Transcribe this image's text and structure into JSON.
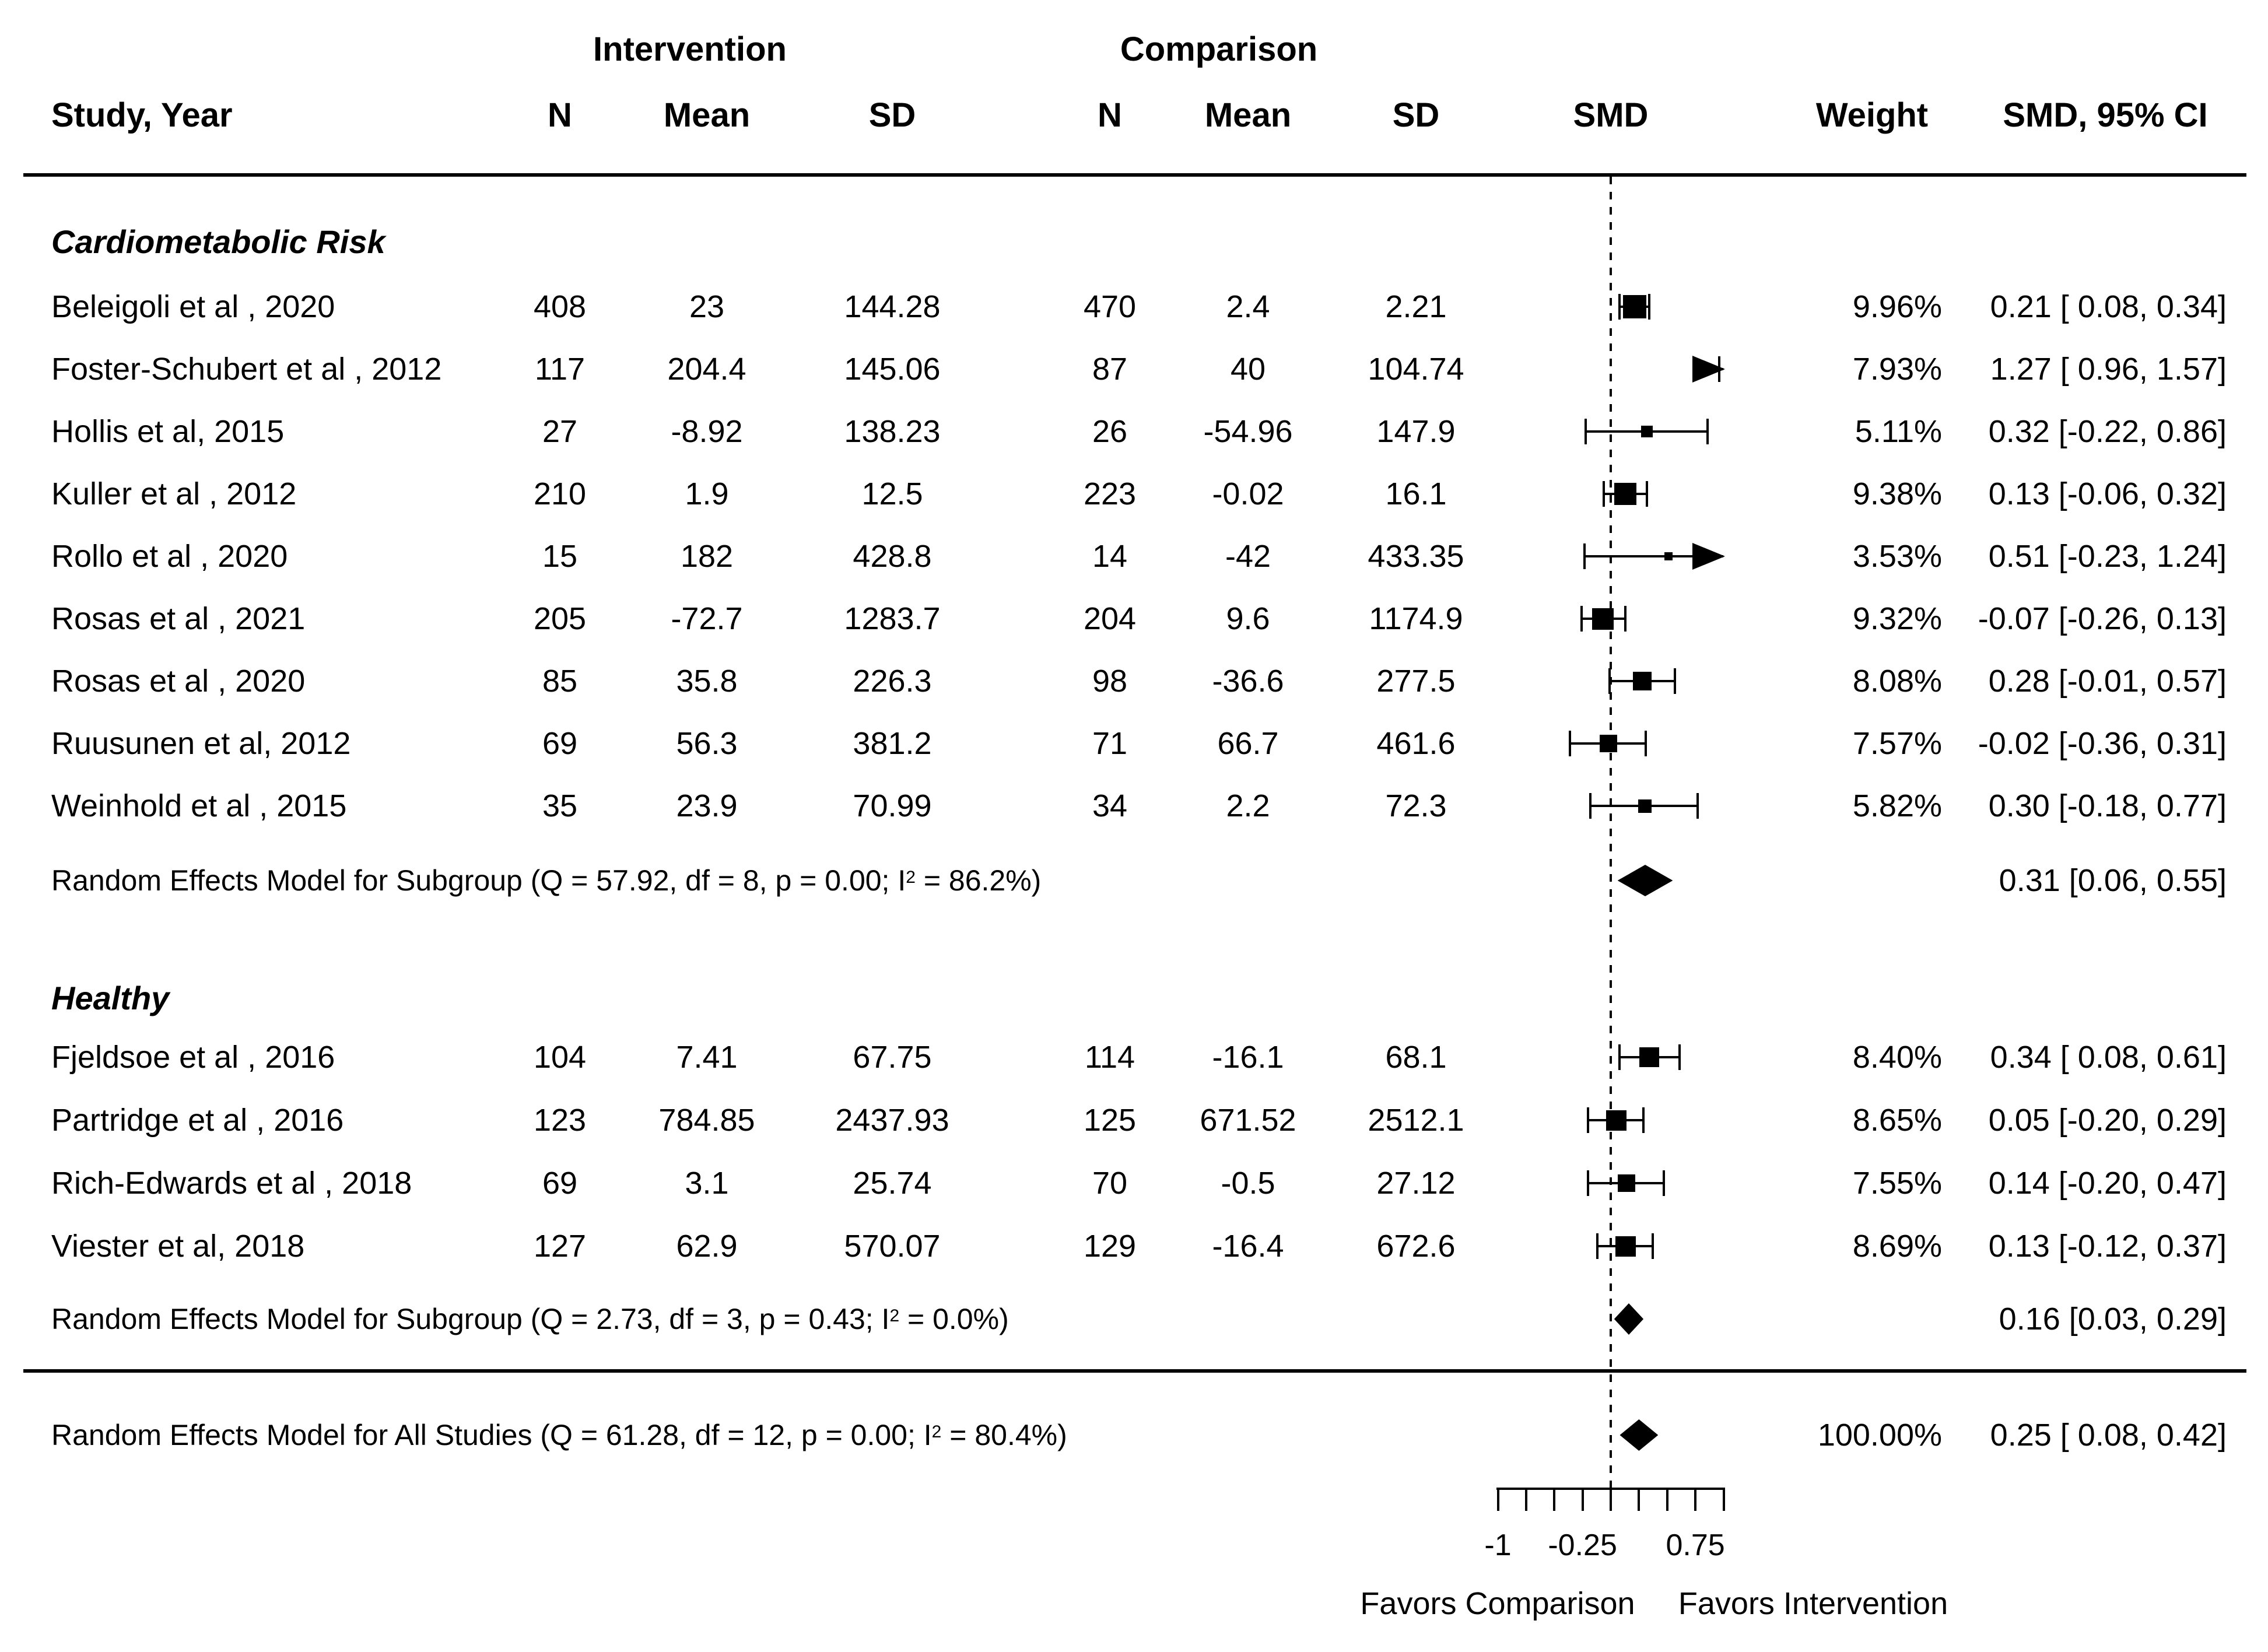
{
  "header": {
    "intervention": "Intervention",
    "comparison": "Comparison",
    "study_year": "Study, Year",
    "n": "N",
    "mean": "Mean",
    "sd": "SD",
    "smd": "SMD",
    "weight": "Weight",
    "smd_ci": "SMD, 95% CI"
  },
  "chart_data": {
    "type": "scatter",
    "chart_kind": "forest_plot_meta_analysis",
    "x_axis": {
      "min": -1,
      "max": 1,
      "tick_step": 0.25,
      "labeled_ticks": [
        {
          "value": -1,
          "label": "-1"
        },
        {
          "value": -0.25,
          "label": "-0.25"
        },
        {
          "value": 0.75,
          "label": "0.75"
        }
      ],
      "reference_line": 0
    },
    "footer_labels": {
      "left": "Favors Comparison",
      "right": "Favors Intervention"
    },
    "groups": [
      {
        "label": "Cardiometabolic Risk",
        "studies": [
          {
            "label": "Beleigoli et al , 2020",
            "n_int": "408",
            "mean_int": "23",
            "sd_int": "144.28",
            "n_comp": "470",
            "mean_comp": "2.4",
            "sd_comp": "2.21",
            "weight": "9.96%",
            "weight_value": 9.96,
            "smd": 0.21,
            "ci_low": 0.08,
            "ci_high": 0.34,
            "ci_text": "0.21 [ 0.08, 0.34]",
            "clip_high": false
          },
          {
            "label": "Foster-Schubert et al , 2012",
            "n_int": "117",
            "mean_int": "204.4",
            "sd_int": "145.06",
            "n_comp": "87",
            "mean_comp": "40",
            "sd_comp": "104.74",
            "weight": "7.93%",
            "weight_value": 7.93,
            "smd": 1.27,
            "ci_low": 0.96,
            "ci_high": 1.57,
            "ci_text": "1.27 [ 0.96, 1.57]",
            "clip_high": true
          },
          {
            "label": "Hollis et al, 2015",
            "n_int": "27",
            "mean_int": "-8.92",
            "sd_int": "138.23",
            "n_comp": "26",
            "mean_comp": "-54.96",
            "sd_comp": "147.9",
            "weight": "5.11%",
            "weight_value": 5.11,
            "smd": 0.32,
            "ci_low": -0.22,
            "ci_high": 0.86,
            "ci_text": "0.32 [-0.22, 0.86]",
            "clip_high": false
          },
          {
            "label": "Kuller et al , 2012",
            "n_int": "210",
            "mean_int": "1.9",
            "sd_int": "12.5",
            "n_comp": "223",
            "mean_comp": "-0.02",
            "sd_comp": "16.1",
            "weight": "9.38%",
            "weight_value": 9.38,
            "smd": 0.13,
            "ci_low": -0.06,
            "ci_high": 0.32,
            "ci_text": "0.13 [-0.06, 0.32]",
            "clip_high": false
          },
          {
            "label": "Rollo et al , 2020",
            "n_int": "15",
            "mean_int": "182",
            "sd_int": "428.8",
            "n_comp": "14",
            "mean_comp": "-42",
            "sd_comp": "433.35",
            "weight": "3.53%",
            "weight_value": 3.53,
            "smd": 0.51,
            "ci_low": -0.23,
            "ci_high": 1.24,
            "ci_text": "0.51 [-0.23, 1.24]",
            "clip_high": true
          },
          {
            "label": "Rosas et al , 2021",
            "n_int": "205",
            "mean_int": "-72.7",
            "sd_int": "1283.7",
            "n_comp": "204",
            "mean_comp": "9.6",
            "sd_comp": "1174.9",
            "weight": "9.32%",
            "weight_value": 9.32,
            "smd": -0.07,
            "ci_low": -0.26,
            "ci_high": 0.13,
            "ci_text": "-0.07 [-0.26, 0.13]",
            "clip_high": false
          },
          {
            "label": "Rosas et al , 2020",
            "n_int": "85",
            "mean_int": "35.8",
            "sd_int": "226.3",
            "n_comp": "98",
            "mean_comp": "-36.6",
            "sd_comp": "277.5",
            "weight": "8.08%",
            "weight_value": 8.08,
            "smd": 0.28,
            "ci_low": -0.01,
            "ci_high": 0.57,
            "ci_text": "0.28 [-0.01, 0.57]",
            "clip_high": false
          },
          {
            "label": "Ruusunen et al, 2012",
            "n_int": "69",
            "mean_int": "56.3",
            "sd_int": "381.2",
            "n_comp": "71",
            "mean_comp": "66.7",
            "sd_comp": "461.6",
            "weight": "7.57%",
            "weight_value": 7.57,
            "smd": -0.02,
            "ci_low": -0.36,
            "ci_high": 0.31,
            "ci_text": "-0.02 [-0.36, 0.31]",
            "clip_high": false
          },
          {
            "label": "Weinhold et al , 2015",
            "n_int": "35",
            "mean_int": "23.9",
            "sd_int": "70.99",
            "n_comp": "34",
            "mean_comp": "2.2",
            "sd_comp": "72.3",
            "weight": "5.82%",
            "weight_value": 5.82,
            "smd": 0.3,
            "ci_low": -0.18,
            "ci_high": 0.77,
            "ci_text": "0.30 [-0.18, 0.77]",
            "clip_high": false
          }
        ],
        "summary": {
          "text_pre": "Random Effects Model for Subgroup (Q = 57.92, df = 8, p = 0.00; I",
          "text_sup": "2",
          "text_post": " = 86.2%)",
          "smd": 0.31,
          "ci_low": 0.06,
          "ci_high": 0.55,
          "ci_text": "0.31 [0.06, 0.55]"
        }
      },
      {
        "label": "Healthy",
        "studies": [
          {
            "label": "Fjeldsoe et al , 2016",
            "n_int": "104",
            "mean_int": "7.41",
            "sd_int": "67.75",
            "n_comp": "114",
            "mean_comp": "-16.1",
            "sd_comp": "68.1",
            "weight": "8.40%",
            "weight_value": 8.4,
            "smd": 0.34,
            "ci_low": 0.08,
            "ci_high": 0.61,
            "ci_text": "0.34 [ 0.08, 0.61]",
            "clip_high": false
          },
          {
            "label": "Partridge et al , 2016",
            "n_int": "123",
            "mean_int": "784.85",
            "sd_int": "2437.93",
            "n_comp": "125",
            "mean_comp": "671.52",
            "sd_comp": "2512.1",
            "weight": "8.65%",
            "weight_value": 8.65,
            "smd": 0.05,
            "ci_low": -0.2,
            "ci_high": 0.29,
            "ci_text": "0.05 [-0.20, 0.29]",
            "clip_high": false
          },
          {
            "label": "Rich-Edwards et al , 2018",
            "n_int": "69",
            "mean_int": "3.1",
            "sd_int": "25.74",
            "n_comp": "70",
            "mean_comp": "-0.5",
            "sd_comp": "27.12",
            "weight": "7.55%",
            "weight_value": 7.55,
            "smd": 0.14,
            "ci_low": -0.2,
            "ci_high": 0.47,
            "ci_text": "0.14 [-0.20, 0.47]",
            "clip_high": false
          },
          {
            "label": "Viester et al, 2018",
            "n_int": "127",
            "mean_int": "62.9",
            "sd_int": "570.07",
            "n_comp": "129",
            "mean_comp": "-16.4",
            "sd_comp": "672.6",
            "weight": "8.69%",
            "weight_value": 8.69,
            "smd": 0.13,
            "ci_low": -0.12,
            "ci_high": 0.37,
            "ci_text": "0.13 [-0.12, 0.37]",
            "clip_high": false
          }
        ],
        "summary": {
          "text_pre": "Random Effects Model for Subgroup (Q = 2.73, df = 3, p = 0.43; I",
          "text_sup": "2",
          "text_post": " = 0.0%)",
          "smd": 0.16,
          "ci_low": 0.03,
          "ci_high": 0.29,
          "ci_text": "0.16 [0.03, 0.29]"
        }
      }
    ],
    "overall": {
      "text_pre": "Random Effects Model for All Studies (Q = 61.28, df = 12, p = 0.00; I",
      "text_sup": "2",
      "text_post": " = 80.4%)",
      "weight": "100.00%",
      "smd": 0.25,
      "ci_low": 0.08,
      "ci_high": 0.42,
      "ci_text": "0.25 [ 0.08, 0.42]"
    }
  }
}
